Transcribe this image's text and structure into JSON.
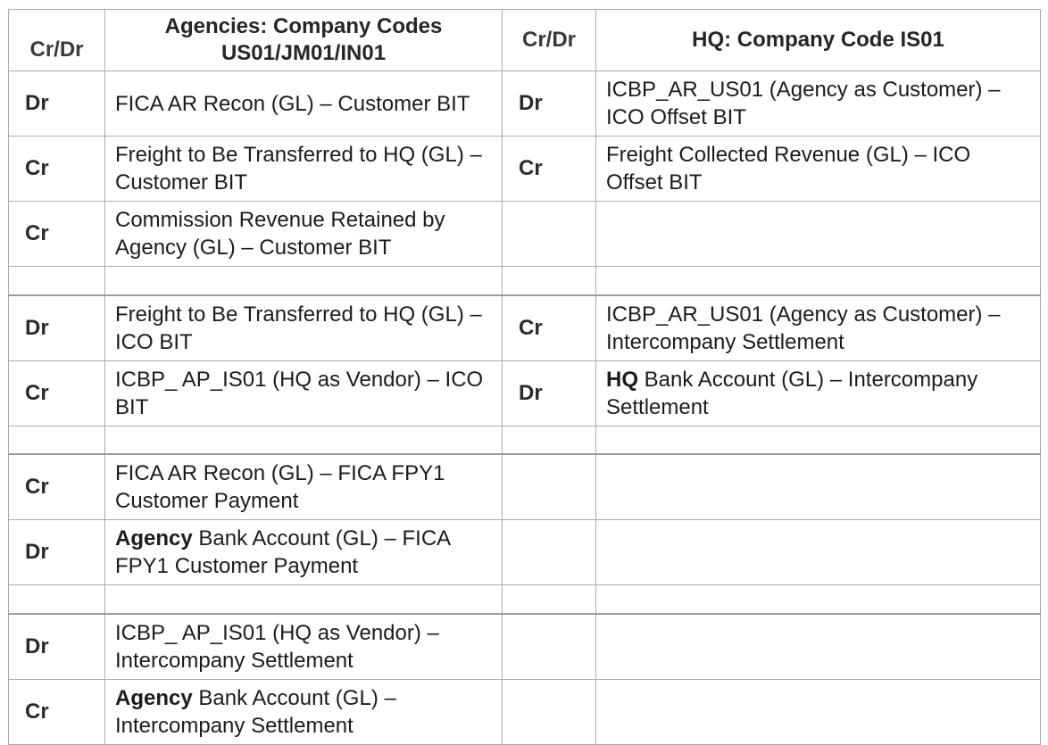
{
  "table": {
    "header": {
      "agency_crdr_label": "Cr/Dr",
      "agency_title_line1": "Agencies: Company Codes",
      "agency_title_line2": "US01/JM01/IN01",
      "hq_crdr_label": "Cr/Dr",
      "hq_title": "HQ: Company Code IS01"
    },
    "rows": [
      {
        "agency_crdr": "Dr",
        "agency_account": [
          {
            "text": "FICA AR Recon (GL) – Customer BIT",
            "bold": false
          }
        ],
        "hq_crdr": "Dr",
        "hq_account": [
          {
            "text": "ICBP_AR_US01 (Agency as Customer) – ICO Offset BIT",
            "bold": false
          }
        ]
      },
      {
        "agency_crdr": "Cr",
        "agency_account": [
          {
            "text": "Freight to Be Transferred to HQ (GL) – Customer BIT",
            "bold": false
          }
        ],
        "hq_crdr": "Cr",
        "hq_account": [
          {
            "text": "Freight Collected Revenue (GL) – ICO Offset BIT",
            "bold": false
          }
        ]
      },
      {
        "agency_crdr": "Cr",
        "agency_account": [
          {
            "text": "Commission Revenue Retained by Agency (GL) – Customer BIT",
            "bold": false
          }
        ],
        "hq_crdr": "",
        "hq_account": []
      },
      {
        "spacer": true
      },
      {
        "agency_crdr": "Dr",
        "agency_account": [
          {
            "text": "Freight to Be Transferred to HQ (GL) – ICO BIT",
            "bold": false
          }
        ],
        "hq_crdr": "Cr",
        "hq_account": [
          {
            "text": "ICBP_AR_US01 (Agency as Customer) – Intercompany Settlement",
            "bold": false
          }
        ]
      },
      {
        "agency_crdr": "Cr",
        "agency_account": [
          {
            "text": "ICBP_ AP_IS01 (HQ as Vendor) – ICO BIT",
            "bold": false
          }
        ],
        "hq_crdr": "Dr",
        "hq_account": [
          {
            "text": "HQ",
            "bold": true
          },
          {
            "text": " Bank Account (GL) – Intercompany Settlement",
            "bold": false
          }
        ]
      },
      {
        "spacer": true
      },
      {
        "agency_crdr": "Cr",
        "agency_account": [
          {
            "text": "FICA AR Recon (GL) – FICA FPY1 Customer Payment",
            "bold": false
          }
        ],
        "hq_crdr": "",
        "hq_account": []
      },
      {
        "agency_crdr": "Dr",
        "agency_account": [
          {
            "text": "Agency",
            "bold": true
          },
          {
            "text": " Bank Account (GL) – FICA FPY1 Customer Payment",
            "bold": false
          }
        ],
        "hq_crdr": "",
        "hq_account": []
      },
      {
        "spacer": true
      },
      {
        "agency_crdr": "Dr",
        "agency_account": [
          {
            "text": "ICBP_ AP_IS01 (HQ as Vendor) – Intercompany Settlement",
            "bold": false
          }
        ],
        "hq_crdr": "",
        "hq_account": []
      },
      {
        "agency_crdr": "Cr",
        "agency_account": [
          {
            "text": "Agency",
            "bold": true
          },
          {
            "text": " Bank Account (GL) – Intercompany Settlement",
            "bold": false
          }
        ],
        "hq_crdr": "",
        "hq_account": []
      }
    ]
  }
}
